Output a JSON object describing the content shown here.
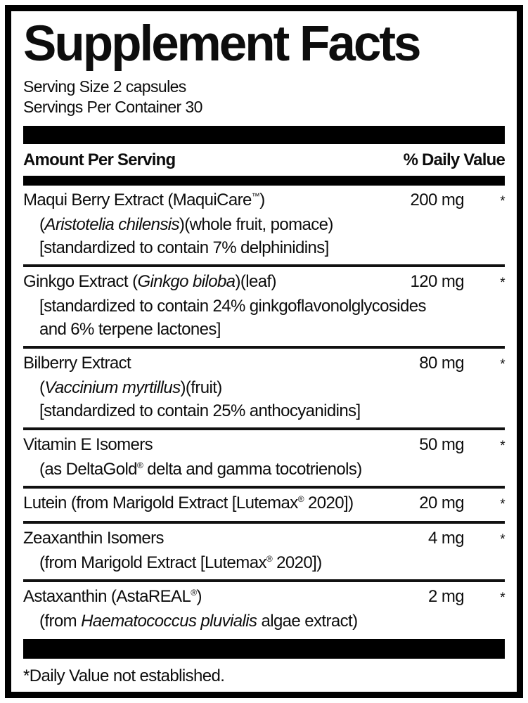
{
  "title": "Supplement Facts",
  "serving": {
    "size": "Serving Size 2 capsules",
    "per_container": "Servings Per Container 30"
  },
  "table": {
    "header": {
      "left": "Amount Per Serving",
      "right": "% Daily Value"
    },
    "rows": [
      {
        "main": [
          {
            "t": "Maqui Berry Extract (MaquiCare"
          },
          {
            "t": "™",
            "s": true
          },
          {
            "t": ")"
          }
        ],
        "subs": [
          [
            {
              "t": "("
            },
            {
              "t": "Aristotelia chilensis",
              "i": true
            },
            {
              "t": ")(whole fruit, pomace)"
            }
          ],
          [
            {
              "t": "[standardized to contain 7% delphinidins]"
            }
          ]
        ],
        "amount": "200 mg",
        "daily_value": "*"
      },
      {
        "main": [
          {
            "t": "Ginkgo Extract ("
          },
          {
            "t": "Ginkgo biloba",
            "i": true
          },
          {
            "t": ")(leaf)"
          }
        ],
        "subs": [
          [
            {
              "t": "[standardized to contain 24% ginkgoflavonolglycosides"
            }
          ],
          [
            {
              "t": "and 6% terpene lactones]"
            }
          ]
        ],
        "amount": "120 mg",
        "daily_value": "*"
      },
      {
        "main": [
          {
            "t": "Bilberry Extract"
          }
        ],
        "subs": [
          [
            {
              "t": "("
            },
            {
              "t": "Vaccinium myrtillus",
              "i": true
            },
            {
              "t": ")(fruit)"
            }
          ],
          [
            {
              "t": "[standardized to contain 25% anthocyanidins]"
            }
          ]
        ],
        "amount": "80 mg",
        "daily_value": "*"
      },
      {
        "main": [
          {
            "t": "Vitamin E Isomers"
          }
        ],
        "subs": [
          [
            {
              "t": "(as DeltaGold"
            },
            {
              "t": "®",
              "s": true
            },
            {
              "t": " delta and gamma tocotrienols)"
            }
          ]
        ],
        "amount": "50 mg",
        "daily_value": "*"
      },
      {
        "main": [
          {
            "t": "Lutein (from Marigold Extract [Lutemax"
          },
          {
            "t": "®",
            "s": true
          },
          {
            "t": " 2020])"
          }
        ],
        "subs": [],
        "amount": "20 mg",
        "daily_value": "*"
      },
      {
        "main": [
          {
            "t": "Zeaxanthin Isomers"
          }
        ],
        "subs": [
          [
            {
              "t": "(from Marigold Extract [Lutemax"
            },
            {
              "t": "®",
              "s": true
            },
            {
              "t": " 2020])"
            }
          ]
        ],
        "amount": "4 mg",
        "daily_value": "*"
      },
      {
        "main": [
          {
            "t": "Astaxanthin (AstaREAL"
          },
          {
            "t": "®",
            "s": true
          },
          {
            "t": ")"
          }
        ],
        "subs": [
          [
            {
              "t": "(from "
            },
            {
              "t": "Haematococcus pluvialis",
              "i": true
            },
            {
              "t": " algae extract)"
            }
          ]
        ],
        "amount": "2 mg",
        "daily_value": "*"
      }
    ]
  },
  "footnote": "*Daily Value not established.",
  "colors": {
    "ink": "#0d0d0d",
    "background": "#ffffff",
    "bar": "#000000"
  }
}
